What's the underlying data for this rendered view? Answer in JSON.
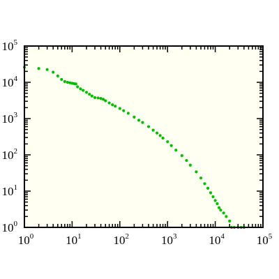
{
  "chart_data": {
    "type": "scatter",
    "title": "",
    "xlabel": "",
    "ylabel": "",
    "x_scale": "log",
    "y_scale": "log",
    "xlim": [
      1,
      100000
    ],
    "ylim": [
      1,
      100000
    ],
    "grid": false,
    "legend": "none",
    "colors": {
      "point": "#00bb00",
      "plot_background": "#fffff2",
      "axes": "#000000"
    },
    "x_ticks": [
      {
        "base": "10",
        "exp": "0",
        "value": 1
      },
      {
        "base": "10",
        "exp": "1",
        "value": 10
      },
      {
        "base": "10",
        "exp": "2",
        "value": 100
      },
      {
        "base": "10",
        "exp": "3",
        "value": 1000
      },
      {
        "base": "10",
        "exp": "4",
        "value": 10000
      },
      {
        "base": "10",
        "exp": "5",
        "value": 100000
      }
    ],
    "y_ticks": [
      {
        "base": "10",
        "exp": "0",
        "value": 1
      },
      {
        "base": "10",
        "exp": "1",
        "value": 10
      },
      {
        "base": "10",
        "exp": "2",
        "value": 100
      },
      {
        "base": "10",
        "exp": "3",
        "value": 1000
      },
      {
        "base": "10",
        "exp": "4",
        "value": 10000
      },
      {
        "base": "10",
        "exp": "5",
        "value": 100000
      }
    ],
    "series": [
      {
        "points": [
          [
            1,
            26000
          ],
          [
            2,
            24000
          ],
          [
            3,
            22500
          ],
          [
            4,
            19000
          ],
          [
            5,
            15000
          ],
          [
            6,
            12000
          ],
          [
            7,
            10500
          ],
          [
            8,
            10000
          ],
          [
            9,
            9700
          ],
          [
            10,
            9400
          ],
          [
            11,
            9200
          ],
          [
            12,
            9000
          ],
          [
            13,
            7500
          ],
          [
            15,
            6600
          ],
          [
            17,
            6000
          ],
          [
            20,
            5300
          ],
          [
            23,
            4700
          ],
          [
            26,
            4200
          ],
          [
            30,
            3800
          ],
          [
            35,
            3700
          ],
          [
            40,
            3600
          ],
          [
            45,
            3400
          ],
          [
            50,
            3100
          ],
          [
            60,
            2700
          ],
          [
            70,
            2400
          ],
          [
            80,
            2200
          ],
          [
            100,
            1900
          ],
          [
            120,
            1650
          ],
          [
            150,
            1400
          ],
          [
            200,
            1100
          ],
          [
            250,
            900
          ],
          [
            300,
            780
          ],
          [
            400,
            600
          ],
          [
            500,
            480
          ],
          [
            600,
            400
          ],
          [
            700,
            340
          ],
          [
            800,
            290
          ],
          [
            1000,
            230
          ],
          [
            1200,
            180
          ],
          [
            1500,
            135
          ],
          [
            2000,
            95
          ],
          [
            2500,
            70
          ],
          [
            3000,
            52
          ],
          [
            4000,
            34
          ],
          [
            5000,
            23
          ],
          [
            6000,
            16
          ],
          [
            7000,
            12
          ],
          [
            8000,
            9
          ],
          [
            9000,
            7
          ],
          [
            10000,
            5.5
          ],
          [
            11000,
            4.5
          ],
          [
            12000,
            3.5
          ],
          [
            13000,
            3
          ],
          [
            15000,
            2.5
          ],
          [
            17000,
            2
          ],
          [
            20000,
            1.5
          ],
          [
            22000,
            1
          ],
          [
            25000,
            1
          ],
          [
            30000,
            1
          ],
          [
            35000,
            1
          ],
          [
            40000,
            1
          ]
        ]
      }
    ]
  }
}
